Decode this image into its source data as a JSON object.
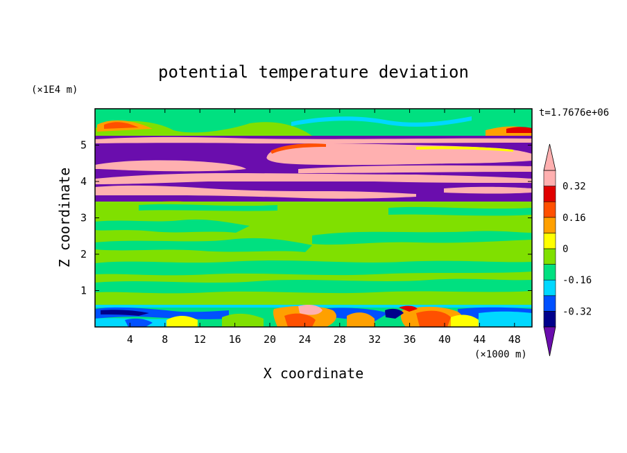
{
  "chart_data": {
    "type": "heatmap",
    "title": "potential temperature deviation",
    "time_label": "t=1.7676e+06",
    "xlabel": "X coordinate",
    "ylabel": "Z coordinate",
    "x_scale_label": "(×1000 m)",
    "y_scale_label": "(×1E4 m)",
    "xlim": [
      0,
      50
    ],
    "ylim": [
      0,
      6
    ],
    "x_ticks": [
      4,
      8,
      12,
      16,
      20,
      24,
      28,
      32,
      36,
      40,
      44,
      48
    ],
    "y_ticks": [
      1,
      2,
      3,
      4,
      5
    ],
    "colorbar": {
      "levels": [
        -0.4,
        -0.32,
        -0.24,
        -0.16,
        -0.08,
        0,
        0.08,
        0.16,
        0.24,
        0.32,
        0.4
      ],
      "labels": [
        "0.32",
        "0.16",
        "0",
        "-0.16",
        "-0.32"
      ],
      "label_values": [
        0.32,
        0.16,
        0,
        -0.16,
        -0.32
      ],
      "colors": [
        "#6a0dad",
        "#00008b",
        "#0050ff",
        "#00d8ff",
        "#00e080",
        "#80e000",
        "#ffff00",
        "#ffa000",
        "#ff5000",
        "#e00000",
        "#ffb0b0"
      ],
      "extend": "both"
    },
    "layers": [
      {
        "z_range": [
          5.6,
          6.0
        ],
        "pattern": "green/cyan with red-orange-yellow streaks near left and right edges"
      },
      {
        "z_range": [
          3.45,
          5.6
        ],
        "pattern": "alternating bands of purple (below -0.4) and pink (above 0.4)"
      },
      {
        "z_range": [
          0.62,
          3.45
        ],
        "pattern": "mostly light green (0 to 0.08) with patches of green (-0.08 to 0)"
      },
      {
        "z_range": [
          0.0,
          0.62
        ],
        "pattern": "mixed cyan, blue, green, yellow and orange with pink cells near x=24 and x=38"
      }
    ]
  }
}
